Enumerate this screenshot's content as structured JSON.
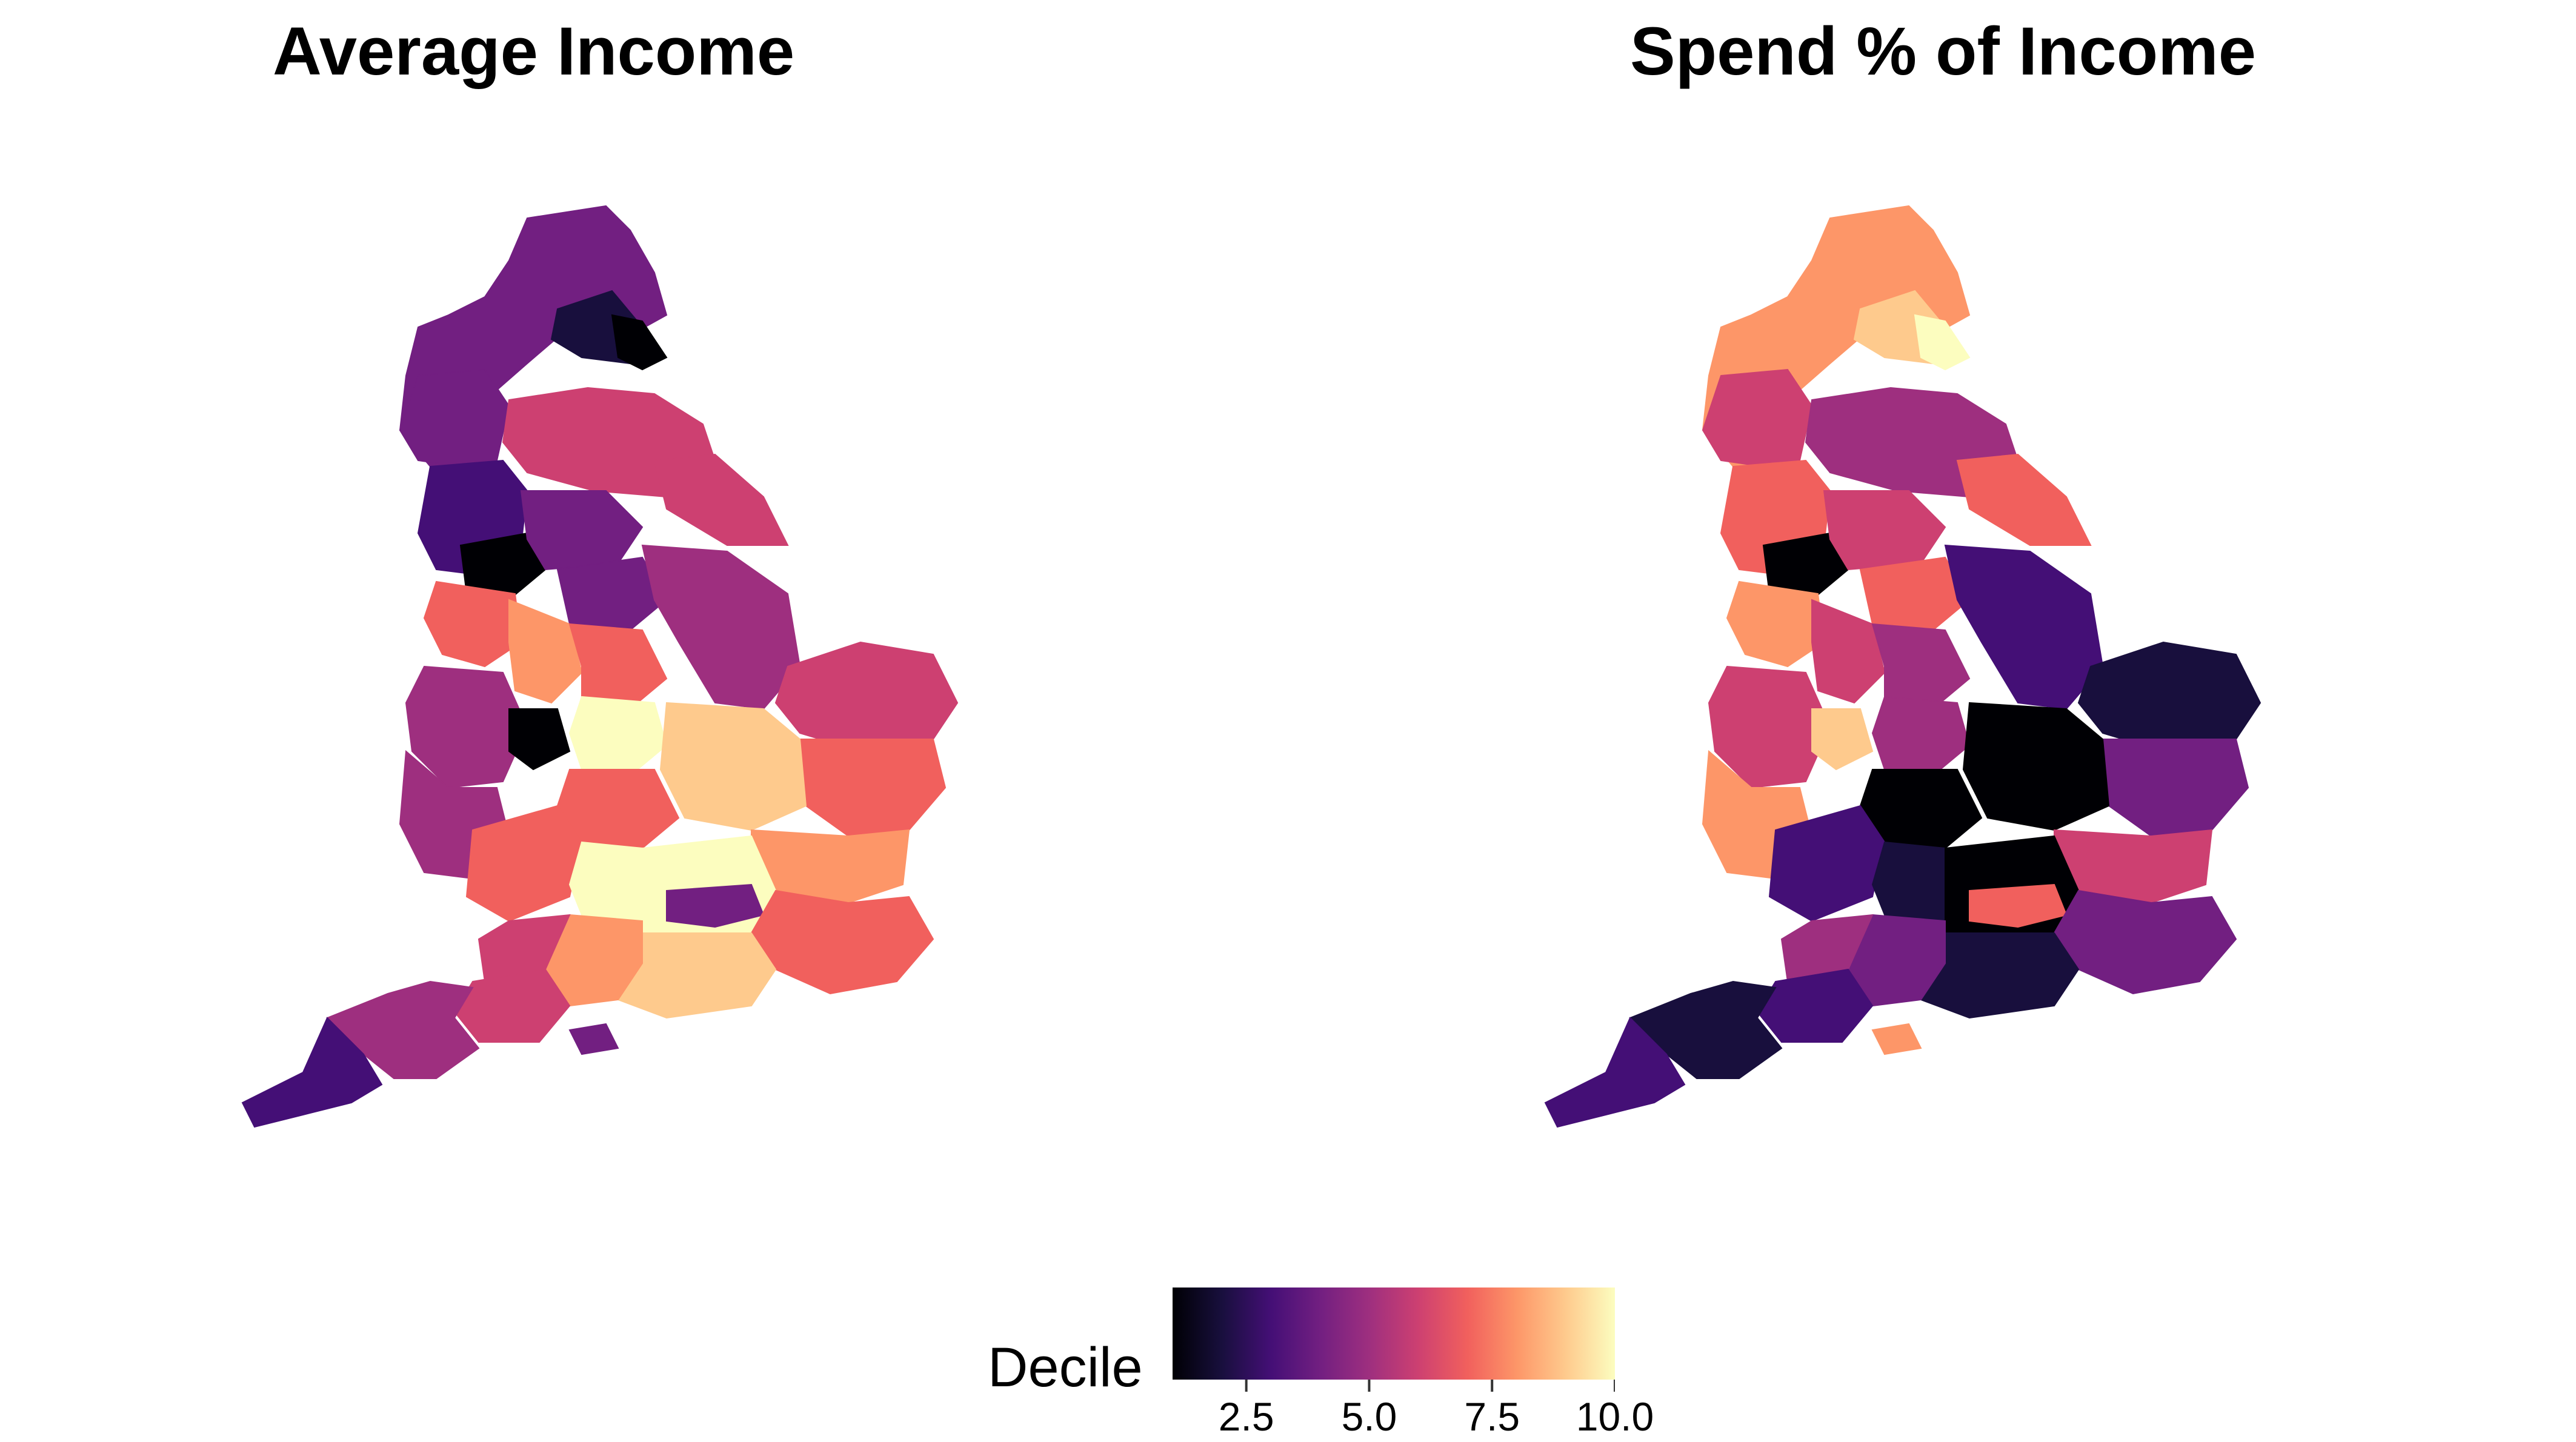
{
  "panels": [
    {
      "title": "Average Income"
    },
    {
      "title": "Spend % of Income"
    }
  ],
  "legend": {
    "title": "Decile",
    "min": 1,
    "max": 10,
    "ticks": [
      "2.5",
      "5.0",
      "7.5",
      "10.0"
    ],
    "tick_values": [
      2.5,
      5.0,
      7.5,
      10.0
    ],
    "palette": [
      "#000004",
      "#180f3d",
      "#440f76",
      "#721f81",
      "#9e2f7f",
      "#cd4071",
      "#f1605d",
      "#fd9668",
      "#feca8d",
      "#fcfdbf"
    ],
    "na_color": "#808080"
  },
  "maps": {
    "average_income": {
      "regions": [
        {
          "name": "north",
          "decile": 4
        },
        {
          "name": "northumberland-coast",
          "decile": 2
        },
        {
          "name": "tyne",
          "decile": 1
        },
        {
          "name": "cumbria",
          "decile": 4
        },
        {
          "name": "yorkshire-north",
          "decile": 6
        },
        {
          "name": "east-riding",
          "decile": 6
        },
        {
          "name": "lancashire",
          "decile": 3
        },
        {
          "name": "manchester",
          "decile": 1
        },
        {
          "name": "west-yorkshire",
          "decile": 4
        },
        {
          "name": "south-yorkshire",
          "decile": 4
        },
        {
          "name": "lincolnshire",
          "decile": 5
        },
        {
          "name": "cheshire",
          "decile": 7
        },
        {
          "name": "derbyshire",
          "decile": 8
        },
        {
          "name": "nottingham",
          "decile": 7
        },
        {
          "name": "west-midlands",
          "decile": 5
        },
        {
          "name": "birmingham",
          "decile": 1
        },
        {
          "name": "leicester",
          "decile": 10
        },
        {
          "name": "northamptonshire",
          "decile": 7
        },
        {
          "name": "norfolk",
          "decile": 6
        },
        {
          "name": "suffolk",
          "decile": 7
        },
        {
          "name": "cambridgeshire",
          "decile": 9
        },
        {
          "name": "essex",
          "decile": 8
        },
        {
          "name": "wales-border",
          "decile": 5
        },
        {
          "name": "gloucestershire",
          "decile": 7
        },
        {
          "name": "oxfordshire",
          "decile": 10
        },
        {
          "name": "home-counties",
          "decile": 10
        },
        {
          "name": "london",
          "decile": 4
        },
        {
          "name": "kent",
          "decile": 7
        },
        {
          "name": "sussex",
          "decile": 9
        },
        {
          "name": "hampshire",
          "decile": 8
        },
        {
          "name": "wiltshire",
          "decile": 6
        },
        {
          "name": "dorset",
          "decile": 6
        },
        {
          "name": "devon",
          "decile": 5
        },
        {
          "name": "cornwall",
          "decile": 3
        },
        {
          "name": "isle-of-wight",
          "decile": 4
        }
      ]
    },
    "spend_pct_income": {
      "regions": [
        {
          "name": "north",
          "decile": 8
        },
        {
          "name": "northumberland-coast",
          "decile": 9
        },
        {
          "name": "tyne",
          "decile": 10
        },
        {
          "name": "cumbria",
          "decile": 6
        },
        {
          "name": "yorkshire-north",
          "decile": 5
        },
        {
          "name": "east-riding",
          "decile": 7
        },
        {
          "name": "lancashire",
          "decile": 7
        },
        {
          "name": "manchester",
          "decile": 1
        },
        {
          "name": "west-yorkshire",
          "decile": 6
        },
        {
          "name": "south-yorkshire",
          "decile": 7
        },
        {
          "name": "lincolnshire",
          "decile": 3
        },
        {
          "name": "cheshire",
          "decile": 8
        },
        {
          "name": "derbyshire",
          "decile": 6
        },
        {
          "name": "nottingham",
          "decile": 5
        },
        {
          "name": "west-midlands",
          "decile": 6
        },
        {
          "name": "birmingham",
          "decile": 9
        },
        {
          "name": "leicester",
          "decile": 5
        },
        {
          "name": "northamptonshire",
          "decile": 1
        },
        {
          "name": "norfolk",
          "decile": 2
        },
        {
          "name": "suffolk",
          "decile": 4
        },
        {
          "name": "cambridgeshire",
          "decile": 1
        },
        {
          "name": "essex",
          "decile": 6
        },
        {
          "name": "wales-border",
          "decile": 8
        },
        {
          "name": "gloucestershire",
          "decile": 3
        },
        {
          "name": "oxfordshire",
          "decile": 2
        },
        {
          "name": "home-counties",
          "decile": 1
        },
        {
          "name": "london",
          "decile": 7
        },
        {
          "name": "kent",
          "decile": 4
        },
        {
          "name": "sussex",
          "decile": 2
        },
        {
          "name": "hampshire",
          "decile": 4
        },
        {
          "name": "wiltshire",
          "decile": 5
        },
        {
          "name": "dorset",
          "decile": 3
        },
        {
          "name": "devon",
          "decile": 2
        },
        {
          "name": "cornwall",
          "decile": 3
        },
        {
          "name": "isle-of-wight",
          "decile": 8
        }
      ]
    }
  }
}
